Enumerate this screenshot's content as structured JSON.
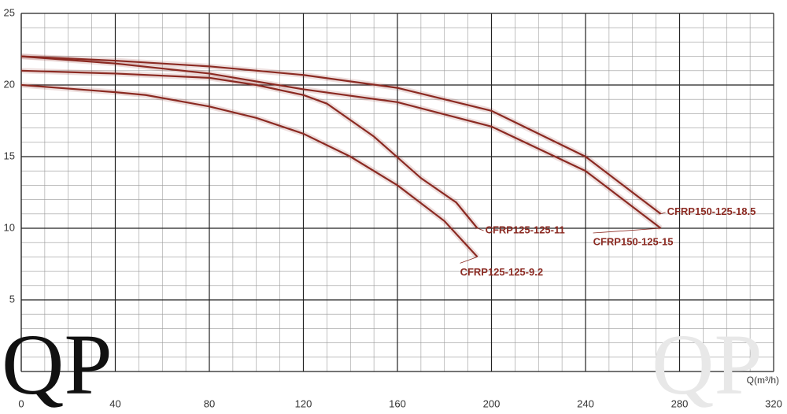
{
  "chart_data": {
    "type": "line",
    "x_label": "Q(m³/h)",
    "logo": "QP",
    "xlim": [
      0,
      320
    ],
    "xticks": [
      0,
      40,
      80,
      120,
      160,
      200,
      240,
      280,
      320
    ],
    "ylim": [
      0,
      25
    ],
    "yticks": [
      5,
      10,
      15,
      20,
      25
    ],
    "grid": true,
    "series": [
      {
        "name": "CFRP125-125-9.2",
        "color": "#8b2a22",
        "x": [
          0,
          40,
          53,
          80,
          100,
          120,
          140,
          160,
          180,
          194
        ],
        "values": [
          20,
          19.5,
          19.3,
          18.5,
          17.7,
          16.6,
          15,
          13,
          10.5,
          8
        ]
      },
      {
        "name": "CFRP125-125-11",
        "color": "#8b2a22",
        "x": [
          0,
          40,
          80,
          100,
          120,
          130,
          150,
          170,
          185,
          194
        ],
        "values": [
          21,
          20.8,
          20.5,
          20,
          19.3,
          18.7,
          16.4,
          13.5,
          11.8,
          10
        ]
      },
      {
        "name": "CFRP150-125-15",
        "color": "#8b2a22",
        "x": [
          0,
          40,
          80,
          120,
          160,
          200,
          240,
          272
        ],
        "values": [
          22,
          21.5,
          20.8,
          19.7,
          18.8,
          17.1,
          14,
          10
        ]
      },
      {
        "name": "CFRP150-125-18.5",
        "color": "#8b2a22",
        "x": [
          0,
          40,
          80,
          120,
          160,
          200,
          240,
          272
        ],
        "values": [
          22,
          21.7,
          21.3,
          20.7,
          19.8,
          18.2,
          15,
          11
        ]
      }
    ]
  }
}
